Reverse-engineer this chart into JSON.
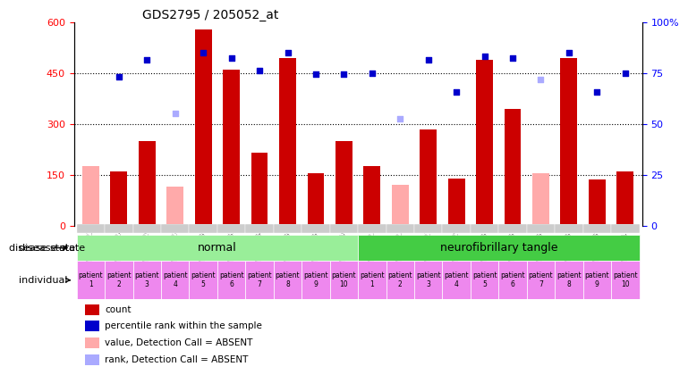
{
  "title": "GDS2795 / 205052_at",
  "samples": [
    "GSM107522",
    "GSM107524",
    "GSM107526",
    "GSM107528",
    "GSM107530",
    "GSM107532",
    "GSM107534",
    "GSM107536",
    "GSM107538",
    "GSM107540",
    "GSM107523",
    "GSM107525",
    "GSM107527",
    "GSM107529",
    "GSM107531",
    "GSM107533",
    "GSM107535",
    "GSM107537",
    "GSM107539",
    "GSM107541"
  ],
  "count_values": [
    null,
    160,
    250,
    null,
    580,
    460,
    215,
    495,
    155,
    250,
    175,
    null,
    285,
    140,
    490,
    345,
    null,
    495,
    135,
    160
  ],
  "count_absent": [
    175,
    null,
    null,
    115,
    null,
    null,
    null,
    null,
    null,
    null,
    null,
    120,
    null,
    null,
    null,
    null,
    155,
    null,
    null,
    null
  ],
  "rank_values": [
    null,
    440,
    490,
    null,
    510,
    495,
    458,
    510,
    448,
    448,
    450,
    null,
    490,
    395,
    500,
    495,
    null,
    510,
    395,
    450
  ],
  "rank_absent": [
    null,
    null,
    null,
    330,
    null,
    null,
    null,
    null,
    null,
    null,
    null,
    315,
    null,
    null,
    null,
    null,
    430,
    null,
    null,
    null
  ],
  "disease_state": [
    "normal",
    "normal",
    "normal",
    "normal",
    "normal",
    "normal",
    "normal",
    "normal",
    "normal",
    "normal",
    "neurofibrillary tangle",
    "neurofibrillary tangle",
    "neurofibrillary tangle",
    "neurofibrillary tangle",
    "neurofibrillary tangle",
    "neurofibrillary tangle",
    "neurofibrillary tangle",
    "neurofibrillary tangle",
    "neurofibrillary tangle",
    "neurofibrillary tangle"
  ],
  "patient_labels": [
    "patient\n1",
    "patient\n2",
    "patient\n3",
    "patient\n4",
    "patient\n5",
    "patient\n6",
    "patient\n7",
    "patient\n8",
    "patient\n9",
    "patient\n10",
    "patient\n1",
    "patient\n2",
    "patient\n3",
    "patient\n4",
    "patient\n5",
    "patient\n6",
    "patient\n7",
    "patient\n8",
    "patient\n9",
    "patient\n10"
  ],
  "ylim_left": [
    0,
    600
  ],
  "ylim_right": [
    0,
    100
  ],
  "yticks_left": [
    0,
    150,
    300,
    450,
    600
  ],
  "yticks_right": [
    0,
    25,
    50,
    75,
    100
  ],
  "ytick_labels_right": [
    "0",
    "25",
    "50",
    "75",
    "100%"
  ],
  "bar_color_present": "#cc0000",
  "bar_color_absent": "#ffaaaa",
  "scatter_color_present": "#0000cc",
  "scatter_color_absent": "#aaaaff",
  "normal_color": "#99ee99",
  "tangle_color": "#44cc44",
  "individual_color": "#ee88ee",
  "legend_items": [
    {
      "color": "#cc0000",
      "marker": "s",
      "label": "count"
    },
    {
      "color": "#0000cc",
      "marker": "s",
      "label": "percentile rank within the sample"
    },
    {
      "color": "#ffaaaa",
      "marker": "s",
      "label": "value, Detection Call = ABSENT"
    },
    {
      "color": "#aaaaff",
      "marker": "s",
      "label": "rank, Detection Call = ABSENT"
    }
  ]
}
